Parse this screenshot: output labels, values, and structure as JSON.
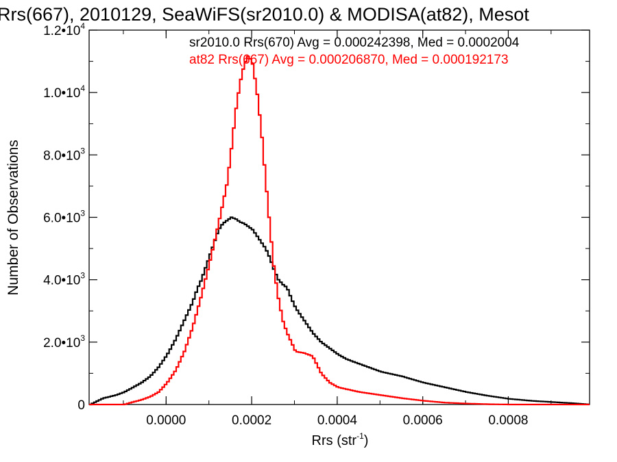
{
  "chart_data": {
    "type": "line",
    "title": "Rrs(667), 2010129, SeaWiFS(sr2010.0) & MODISA(at82), Mesot",
    "xlabel": "Rrs (str",
    "xlabel_superscript": "-1",
    "xlabel_suffix": ")",
    "ylabel": "Number of Observations",
    "xlim": [
      -0.00018,
      0.00099
    ],
    "ylim": [
      0,
      12000
    ],
    "x_ticks": [
      {
        "value": 0.0,
        "label": "0.0000"
      },
      {
        "value": 0.0002,
        "label": "0.0002"
      },
      {
        "value": 0.0004,
        "label": "0.0004"
      },
      {
        "value": 0.0006,
        "label": "0.0006"
      },
      {
        "value": 0.0008,
        "label": "0.0008"
      }
    ],
    "y_ticks": [
      {
        "value": 0,
        "mantissa": "0",
        "exponent": ""
      },
      {
        "value": 2000,
        "mantissa": "2.0•10",
        "exponent": "3"
      },
      {
        "value": 4000,
        "mantissa": "4.0•10",
        "exponent": "3"
      },
      {
        "value": 6000,
        "mantissa": "6.0•10",
        "exponent": "3"
      },
      {
        "value": 8000,
        "mantissa": "8.0•10",
        "exponent": "3"
      },
      {
        "value": 10000,
        "mantissa": "1.0•10",
        "exponent": "4"
      },
      {
        "value": 12000,
        "mantissa": "1.2•10",
        "exponent": "4"
      }
    ],
    "grid": false,
    "legend_position": "top-right",
    "series": [
      {
        "name": "sr2010.0",
        "legend": "sr2010.0 Rrs(670) Avg = 0.000242398, Med = 0.0002004",
        "color": "#000000",
        "style": "step",
        "x": [
          -0.00018,
          -0.00015,
          -0.00012,
          -0.0001,
          -8e-05,
          -6e-05,
          -4e-05,
          -2e-05,
          0.0,
          2e-05,
          4e-05,
          6e-05,
          7e-05,
          8e-05,
          9e-05,
          0.0001,
          0.00011,
          0.00012,
          0.00013,
          0.00014,
          0.00015,
          0.00016,
          0.00017,
          0.00018,
          0.00019,
          0.0002,
          0.00021,
          0.00022,
          0.00023,
          0.00024,
          0.00025,
          0.00026,
          0.00027,
          0.00028,
          0.00029,
          0.0003,
          0.00032,
          0.00034,
          0.00036,
          0.00038,
          0.0004,
          0.00042,
          0.00045,
          0.00048,
          0.0005,
          0.00055,
          0.0006,
          0.00065,
          0.0007,
          0.00075,
          0.0008,
          0.00085,
          0.0009,
          0.00095,
          0.00099
        ],
        "y": [
          0,
          200,
          300,
          400,
          550,
          700,
          900,
          1200,
          1600,
          2100,
          2700,
          3300,
          3700,
          4000,
          4400,
          4800,
          5200,
          5600,
          5800,
          5900,
          6000,
          5950,
          5850,
          5800,
          5700,
          5600,
          5400,
          5200,
          5000,
          4700,
          4300,
          4000,
          3850,
          3750,
          3400,
          3100,
          2700,
          2300,
          2000,
          1800,
          1600,
          1450,
          1300,
          1150,
          1050,
          900,
          700,
          550,
          400,
          280,
          180,
          120,
          80,
          40,
          0
        ]
      },
      {
        "name": "at82",
        "legend": "at82 Rrs(667) Avg = 0.000206870, Med = 0.000192173",
        "color": "#ff0000",
        "style": "step",
        "x": [
          -0.00018,
          -0.0001,
          -8e-05,
          -6e-05,
          -4e-05,
          -2e-05,
          0.0,
          2e-05,
          4e-05,
          6e-05,
          8e-05,
          0.0001,
          0.00012,
          0.00014,
          0.00015,
          0.00016,
          0.00017,
          0.00018,
          0.00019,
          0.0002,
          0.00021,
          0.00022,
          0.00023,
          0.00024,
          0.00025,
          0.00026,
          0.00027,
          0.00028,
          0.00029,
          0.0003,
          0.00032,
          0.00034,
          0.00036,
          0.00038,
          0.0004,
          0.00045,
          0.0005,
          0.00055,
          0.0006,
          0.00065,
          0.0007,
          0.00075,
          0.0008,
          0.00099
        ],
        "y": [
          0,
          0,
          80,
          150,
          250,
          400,
          700,
          1100,
          1700,
          2500,
          3500,
          4600,
          5800,
          7100,
          8200,
          9400,
          10300,
          10900,
          11200,
          10900,
          10000,
          8800,
          7200,
          5700,
          4300,
          3400,
          2700,
          2300,
          2000,
          1700,
          1650,
          1550,
          1000,
          700,
          550,
          400,
          300,
          200,
          120,
          60,
          30,
          10,
          0,
          0
        ]
      }
    ]
  }
}
